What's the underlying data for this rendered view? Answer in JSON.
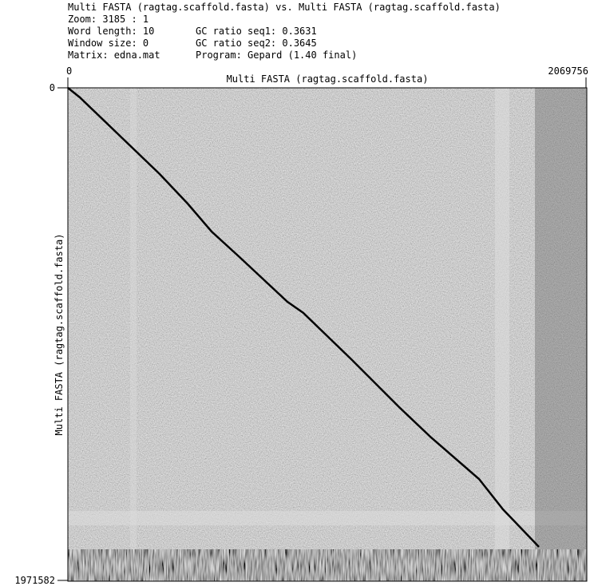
{
  "header": {
    "title": "Multi FASTA (ragtag.scaffold.fasta) vs. Multi FASTA (ragtag.scaffold.fasta)",
    "zoom": "Zoom: 3185 : 1",
    "word_length": "Word length: 10",
    "window_size": "Window size: 0",
    "matrix": "Matrix: edna.mat",
    "gc_seq1": "GC ratio seq1: 0.3631",
    "gc_seq2": "GC ratio seq2: 0.3645",
    "program": "Program: Gepard (1.40 final)"
  },
  "plot": {
    "x_axis": {
      "label": "Multi FASTA (ragtag.scaffold.fasta)",
      "start": "0",
      "end": "2069756"
    },
    "y_axis": {
      "label": "Multi FASTA (ragtag.scaffold.fasta)",
      "start": "0",
      "end": "1971582"
    }
  }
}
